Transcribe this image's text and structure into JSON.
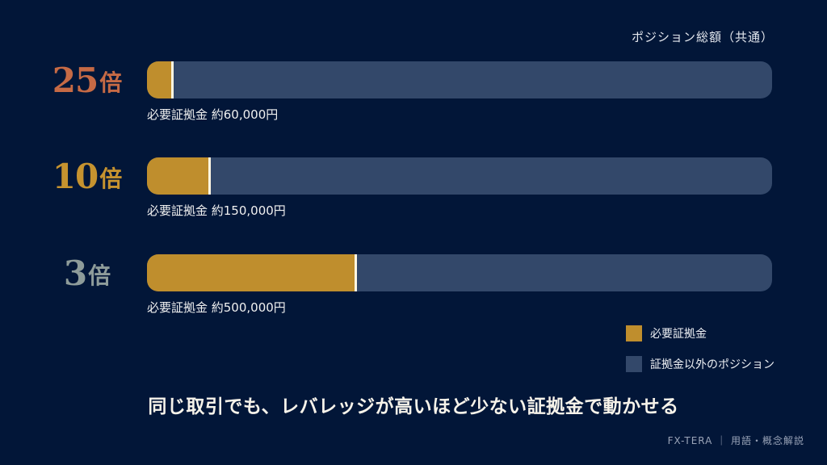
{
  "position_total_label": "ポジション総額（共通）",
  "chart_data": {
    "type": "bar",
    "orientation": "horizontal",
    "stacked": true,
    "categories": [
      "25倍",
      "10倍",
      "3倍"
    ],
    "series": [
      {
        "name": "必要証拠金",
        "values": [
          4,
          10,
          33.3
        ],
        "color": "#bf8e2d"
      },
      {
        "name": "証拠金以外のポジション",
        "values": [
          96,
          90,
          66.7
        ],
        "color": "#33486a"
      }
    ],
    "xlim": [
      0,
      100
    ],
    "legend_position": "bottom-right"
  },
  "rows": [
    {
      "multiplier": "25",
      "suffix": "倍",
      "label_color": "#c66a45",
      "margin_text": "必要証拠金 約60,000円"
    },
    {
      "multiplier": "10",
      "suffix": "倍",
      "label_color": "#c6932f",
      "margin_text": "必要証拠金 約150,000円"
    },
    {
      "multiplier": "3",
      "suffix": "倍",
      "label_color": "#8e9c9a",
      "margin_text": "必要証拠金 約500,000円"
    }
  ],
  "legend": [
    {
      "label": "必要証拠金",
      "color": "#bf8e2d"
    },
    {
      "label": "証拠金以外のポジション",
      "color": "#33486a"
    }
  ],
  "caption": "同じ取引でも、レバレッジが高いほど少ない証拠金で動かせる",
  "footer": "FX-TERA ｜ 用語・概念解説"
}
